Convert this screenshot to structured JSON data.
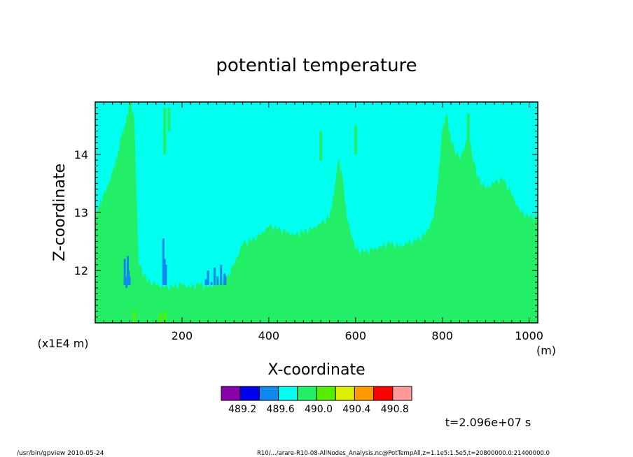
{
  "chart_data": {
    "type": "heatmap",
    "title": "potential temperature",
    "xlabel": "X-coordinate",
    "ylabel": "Z-coordinate",
    "x_unit": "(m)",
    "y_unit": "(x1E4 m)",
    "xlim": [
      0,
      1020
    ],
    "ylim": [
      11.1,
      14.9
    ],
    "x_ticks": [
      200,
      400,
      600,
      800,
      1000
    ],
    "y_ticks": [
      12,
      13,
      14
    ],
    "x_tick_labels": [
      "200",
      "400",
      "600",
      "800",
      "1000"
    ],
    "y_tick_labels": [
      "12",
      "13",
      "14"
    ],
    "colorbar": {
      "levels": [
        489.2,
        489.6,
        490.0,
        490.4,
        490.8
      ],
      "level_labels": [
        "489.2",
        "489.6",
        "490.0",
        "490.4",
        "490.8"
      ],
      "colors": [
        "#8800aa",
        "#0000ee",
        "#1188ee",
        "#00ffee",
        "#22ee66",
        "#55ee00",
        "#ddee00",
        "#ff9900",
        "#ff0000",
        "#ff9999"
      ]
    },
    "background_color": "#00ffee",
    "lower_layer_color": "#22ee66",
    "minor_colors": [
      "#1188ee",
      "#55ee00"
    ],
    "boundary_profile": {
      "x": [
        0,
        10,
        20,
        30,
        40,
        50,
        60,
        70,
        80,
        90,
        100,
        120,
        140,
        160,
        180,
        200,
        220,
        240,
        260,
        280,
        300,
        320,
        340,
        360,
        380,
        400,
        420,
        440,
        460,
        480,
        500,
        520,
        540,
        550,
        560,
        570,
        580,
        600,
        620,
        640,
        660,
        680,
        700,
        720,
        740,
        760,
        780,
        790,
        800,
        810,
        820,
        840,
        860,
        880,
        900,
        920,
        940,
        960,
        980,
        1000,
        1020
      ],
      "z": [
        12.95,
        13.1,
        13.3,
        13.45,
        13.7,
        13.9,
        14.3,
        14.5,
        14.9,
        14.6,
        12.1,
        11.8,
        11.75,
        11.7,
        11.7,
        11.75,
        11.7,
        11.75,
        11.7,
        11.75,
        11.8,
        12.1,
        12.45,
        12.5,
        12.6,
        12.75,
        12.7,
        12.65,
        12.6,
        12.65,
        12.7,
        12.8,
        12.9,
        13.3,
        13.9,
        13.6,
        12.9,
        12.35,
        12.3,
        12.35,
        12.4,
        12.45,
        12.4,
        12.45,
        12.5,
        12.6,
        12.9,
        13.5,
        14.4,
        14.7,
        14.2,
        13.9,
        14.3,
        13.6,
        13.4,
        13.5,
        13.55,
        13.3,
        13.0,
        12.9,
        12.9
      ]
    },
    "x_unit_note": "(m)"
  },
  "annotations": {
    "time": "t=2.096e+07 s",
    "footer_left": "/usr/bin/gpview   2010-05-24",
    "footer_right": "R10/.../arare-R10-08-AllNodes_Analysis.nc@PotTempAll,z=1.1e5:1.5e5,t=20800000.0:21400000.0"
  }
}
